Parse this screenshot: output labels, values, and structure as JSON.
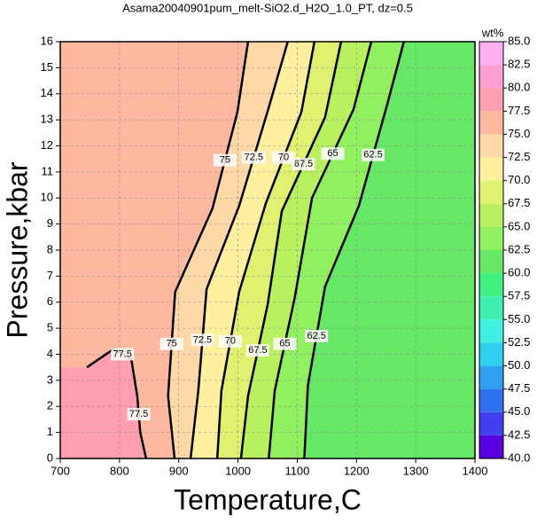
{
  "chart_data": {
    "type": "contour",
    "title": "Asama20040901pum_melt-SiO2.d_H2O_1.0_PT, dz=0.5",
    "x_label": "Temperature,C",
    "y_label": "Pressure,kbar",
    "xlim": [
      700,
      1400
    ],
    "ylim": [
      0,
      16
    ],
    "xticks": [
      700,
      800,
      900,
      1000,
      1100,
      1200,
      1300,
      1400
    ],
    "yticks": [
      0,
      1,
      2,
      3,
      4,
      5,
      6,
      7,
      8,
      9,
      10,
      11,
      12,
      13,
      14,
      15,
      16
    ],
    "grid": true,
    "colorbar_label": "wt%",
    "colorbar_lim": [
      40,
      85
    ],
    "colorbar_ticks": [
      {
        "value": 40,
        "label": "40.0"
      },
      {
        "value": 42.5,
        "label": "42.5"
      },
      {
        "value": 45,
        "label": "45.0"
      },
      {
        "value": 47.5,
        "label": "47.5"
      },
      {
        "value": 50,
        "label": "50.0"
      },
      {
        "value": 52.5,
        "label": "52.5"
      },
      {
        "value": 55,
        "label": "55.0"
      },
      {
        "value": 57.5,
        "label": "57.5"
      },
      {
        "value": 60,
        "label": "60.0"
      },
      {
        "value": 62.5,
        "label": "62.5"
      },
      {
        "value": 65,
        "label": "65.0"
      },
      {
        "value": 67.5,
        "label": "67.5"
      },
      {
        "value": 70,
        "label": "70.0"
      },
      {
        "value": 72.5,
        "label": "72.5"
      },
      {
        "value": 75,
        "label": "75.0"
      },
      {
        "value": 77.5,
        "label": "77.5"
      },
      {
        "value": 80,
        "label": "80.0"
      },
      {
        "value": 82.5,
        "label": "82.5"
      },
      {
        "value": 85,
        "label": "85.0"
      }
    ],
    "colormap": [
      "#5a00e0",
      "#4040f0",
      "#3070f0",
      "#30a0f0",
      "#30d0f0",
      "#40f0e0",
      "#40f0b0",
      "#40f080",
      "#66e866",
      "#90f060",
      "#b8f060",
      "#e0f070",
      "#fff0a0",
      "#ffd8a8",
      "#ffb8a0",
      "#ff9eb0",
      "#ff9ed0",
      "#ffb0f0"
    ],
    "contours": [
      {
        "level": 62.5,
        "x": [
          1280,
          1252,
          1204,
          1147,
          1118,
          1112
        ],
        "y": [
          16,
          13.6,
          9.7,
          6.6,
          2.8,
          0
        ]
      },
      {
        "level": 65,
        "x": [
          1225,
          1195,
          1125,
          1096,
          1062,
          1052
        ],
        "y": [
          16,
          13.4,
          10,
          6.2,
          2.6,
          0
        ]
      },
      {
        "level": 67.5,
        "x": [
          1174,
          1147,
          1074,
          1050,
          1017,
          1005
        ],
        "y": [
          16,
          13.1,
          9.5,
          5.9,
          2.4,
          0
        ]
      },
      {
        "level": 70,
        "x": [
          1129,
          1107,
          1047,
          1002,
          972,
          965
        ],
        "y": [
          16,
          13.3,
          9.8,
          6.4,
          2.6,
          0
        ]
      },
      {
        "level": 72.5,
        "x": [
          1084,
          1051,
          1002,
          947,
          933,
          920
        ],
        "y": [
          16,
          13.4,
          9.7,
          6.5,
          2.6,
          0
        ]
      },
      {
        "level": 75,
        "x": [
          1017,
          999,
          957,
          894,
          882,
          893
        ],
        "y": [
          16,
          13.3,
          9.6,
          6.4,
          2.4,
          0
        ]
      },
      {
        "level": 77.5,
        "x": [
          745,
          790,
          820,
          830,
          835,
          845
        ],
        "y": [
          3.5,
          4.2,
          3.8,
          2.4,
          1,
          0
        ]
      }
    ]
  }
}
